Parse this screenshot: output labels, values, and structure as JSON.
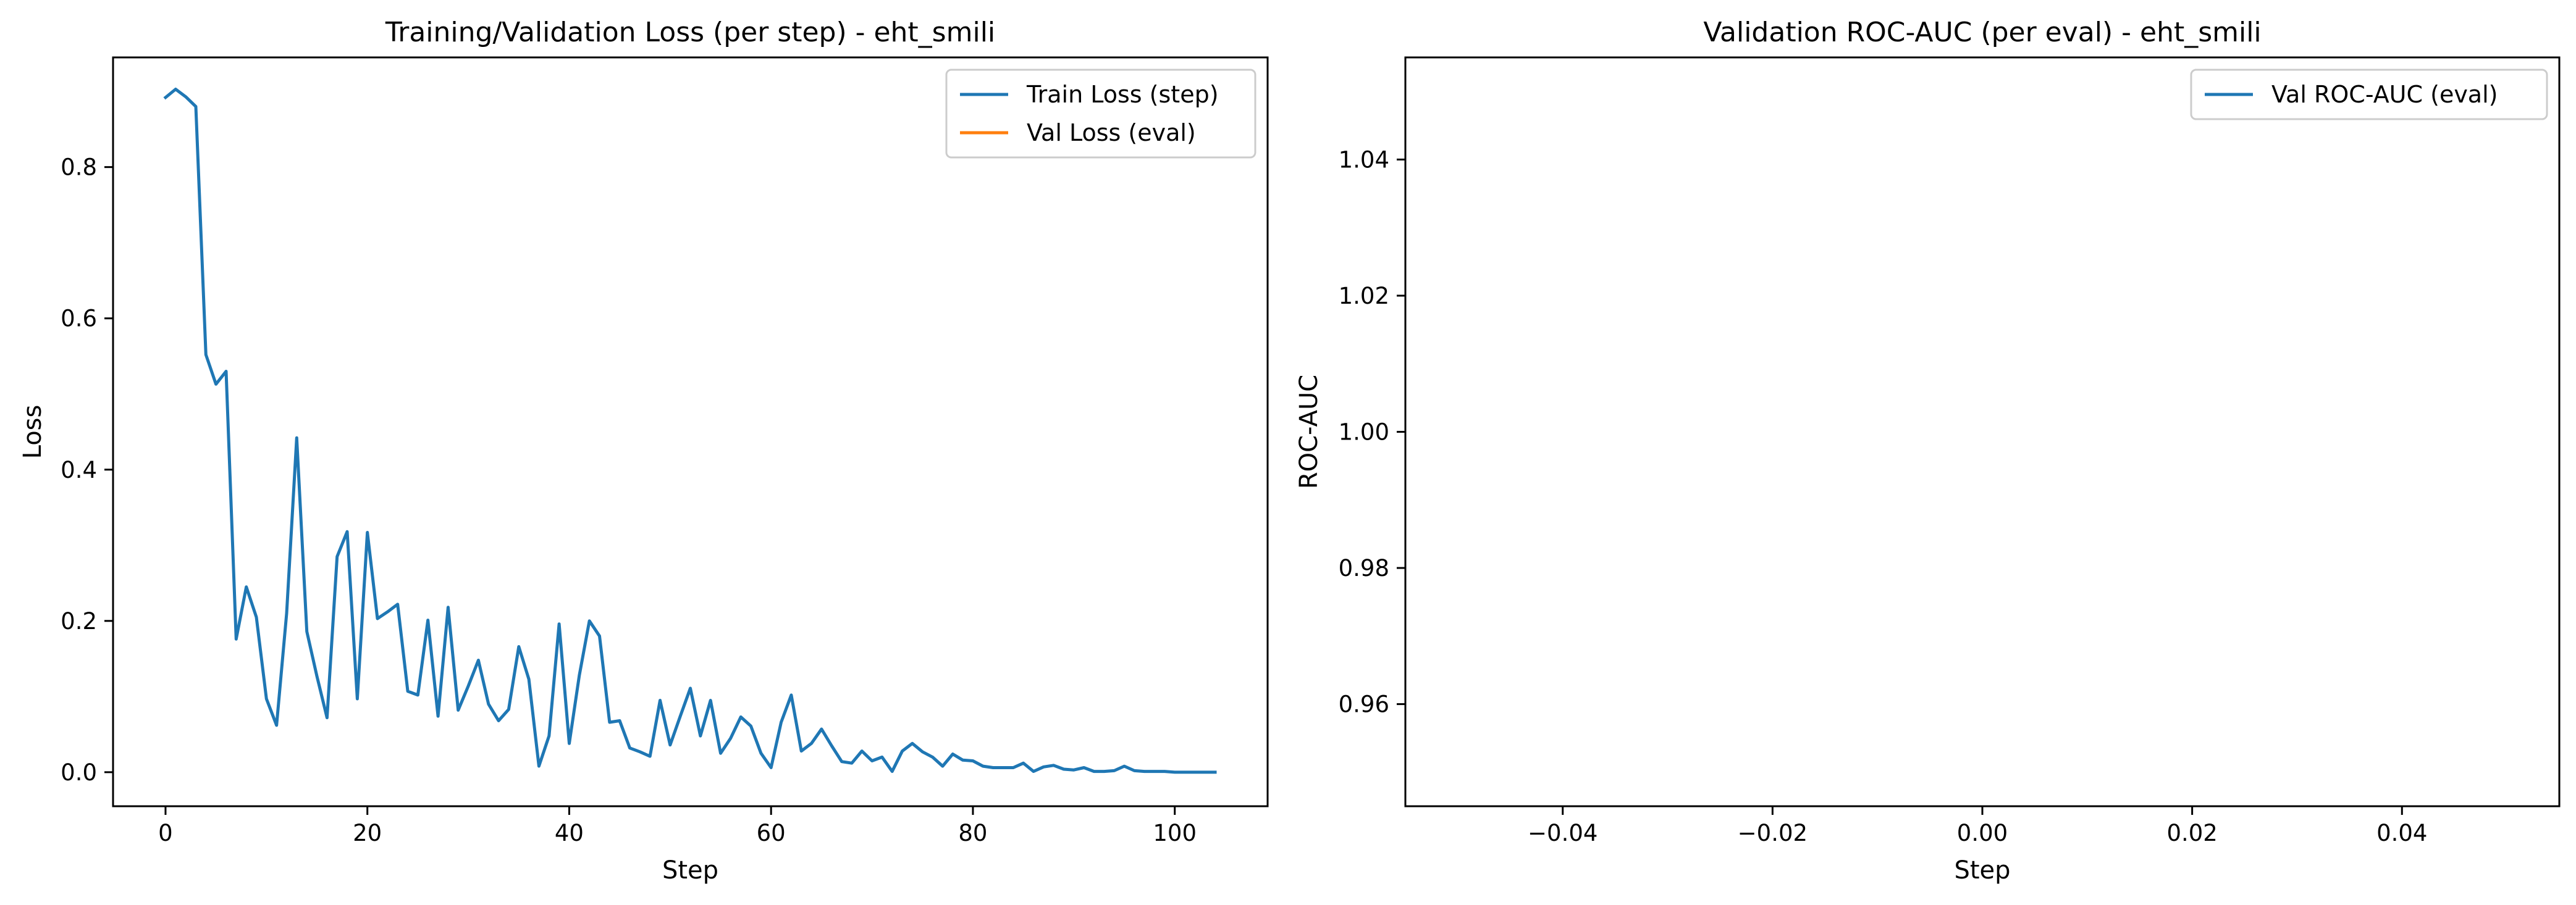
{
  "figure": {
    "charts": 2
  },
  "chart_data": [
    {
      "type": "line",
      "title": "Training/Validation Loss (per step) - eht_smili",
      "xlabel": "Step",
      "ylabel": "Loss",
      "xlim": [
        -5.2,
        109.2
      ],
      "ylim": [
        -0.045,
        0.945
      ],
      "xticks": [
        0,
        20,
        40,
        60,
        80,
        100
      ],
      "xtick_labels": [
        "0",
        "20",
        "40",
        "60",
        "80",
        "100"
      ],
      "yticks": [
        0.0,
        0.2,
        0.4,
        0.6,
        0.8
      ],
      "ytick_labels": [
        "0.0",
        "0.2",
        "0.4",
        "0.6",
        "0.8"
      ],
      "grid": false,
      "legend_position": "top-right",
      "series": [
        {
          "name": "Train Loss (step)",
          "color": "#1f77b4",
          "x": [
            0,
            1,
            2,
            3,
            4,
            5,
            6,
            7,
            8,
            9,
            10,
            11,
            12,
            13,
            14,
            15,
            16,
            17,
            18,
            19,
            20,
            21,
            22,
            23,
            24,
            25,
            26,
            27,
            28,
            29,
            30,
            31,
            32,
            33,
            34,
            35,
            36,
            37,
            38,
            39,
            40,
            41,
            42,
            43,
            44,
            45,
            46,
            47,
            48,
            49,
            50,
            51,
            52,
            53,
            54,
            55,
            56,
            57,
            58,
            59,
            60,
            61,
            62,
            63,
            64,
            65,
            66,
            67,
            68,
            69,
            70,
            71,
            72,
            73,
            74,
            75,
            76,
            77,
            78,
            79,
            80,
            81,
            82,
            83,
            84,
            85,
            86,
            87,
            88,
            89,
            90,
            91,
            92,
            93,
            94,
            95,
            96,
            97,
            98,
            99,
            100,
            101,
            102,
            103,
            104
          ],
          "y": [
            0.892,
            0.903,
            0.893,
            0.88,
            0.552,
            0.513,
            0.53,
            0.176,
            0.245,
            0.205,
            0.097,
            0.062,
            0.21,
            0.442,
            0.186,
            0.127,
            0.072,
            0.285,
            0.318,
            0.097,
            0.317,
            0.203,
            0.212,
            0.222,
            0.107,
            0.102,
            0.201,
            0.074,
            0.218,
            0.082,
            0.114,
            0.148,
            0.09,
            0.068,
            0.083,
            0.166,
            0.123,
            0.008,
            0.048,
            0.196,
            0.038,
            0.128,
            0.2,
            0.18,
            0.066,
            0.068,
            0.032,
            0.027,
            0.021,
            0.095,
            0.036,
            0.074,
            0.111,
            0.048,
            0.095,
            0.025,
            0.045,
            0.073,
            0.061,
            0.025,
            0.006,
            0.066,
            0.102,
            0.028,
            0.038,
            0.057,
            0.035,
            0.014,
            0.012,
            0.028,
            0.015,
            0.02,
            0.001,
            0.028,
            0.038,
            0.027,
            0.02,
            0.008,
            0.024,
            0.016,
            0.015,
            0.008,
            0.006,
            0.006,
            0.006,
            0.012,
            0.001,
            0.007,
            0.009,
            0.004,
            0.003,
            0.006,
            0.001,
            0.001,
            0.002,
            0.008,
            0.002,
            0.001,
            0.001,
            0.001,
            0.0,
            0.0,
            0.0,
            0.0,
            0.0
          ]
        },
        {
          "name": "Val Loss (eval)",
          "color": "#ff7f0e",
          "x": [],
          "y": []
        }
      ]
    },
    {
      "type": "line",
      "title": "Validation ROC-AUC (per eval) - eht_smili",
      "xlabel": "Step",
      "ylabel": "ROC-AUC",
      "xlim": [
        -0.055,
        0.055
      ],
      "ylim": [
        0.945,
        1.055
      ],
      "xticks": [
        -0.04,
        -0.02,
        0.0,
        0.02,
        0.04
      ],
      "xtick_labels": [
        "−0.04",
        "−0.02",
        "0.00",
        "0.02",
        "0.04"
      ],
      "yticks": [
        0.96,
        0.98,
        1.0,
        1.02,
        1.04
      ],
      "ytick_labels": [
        "0.96",
        "0.98",
        "1.00",
        "1.02",
        "1.04"
      ],
      "grid": false,
      "legend_position": "top-right",
      "series": [
        {
          "name": "Val ROC-AUC (eval)",
          "color": "#1f77b4",
          "x": [],
          "y": []
        }
      ]
    }
  ]
}
